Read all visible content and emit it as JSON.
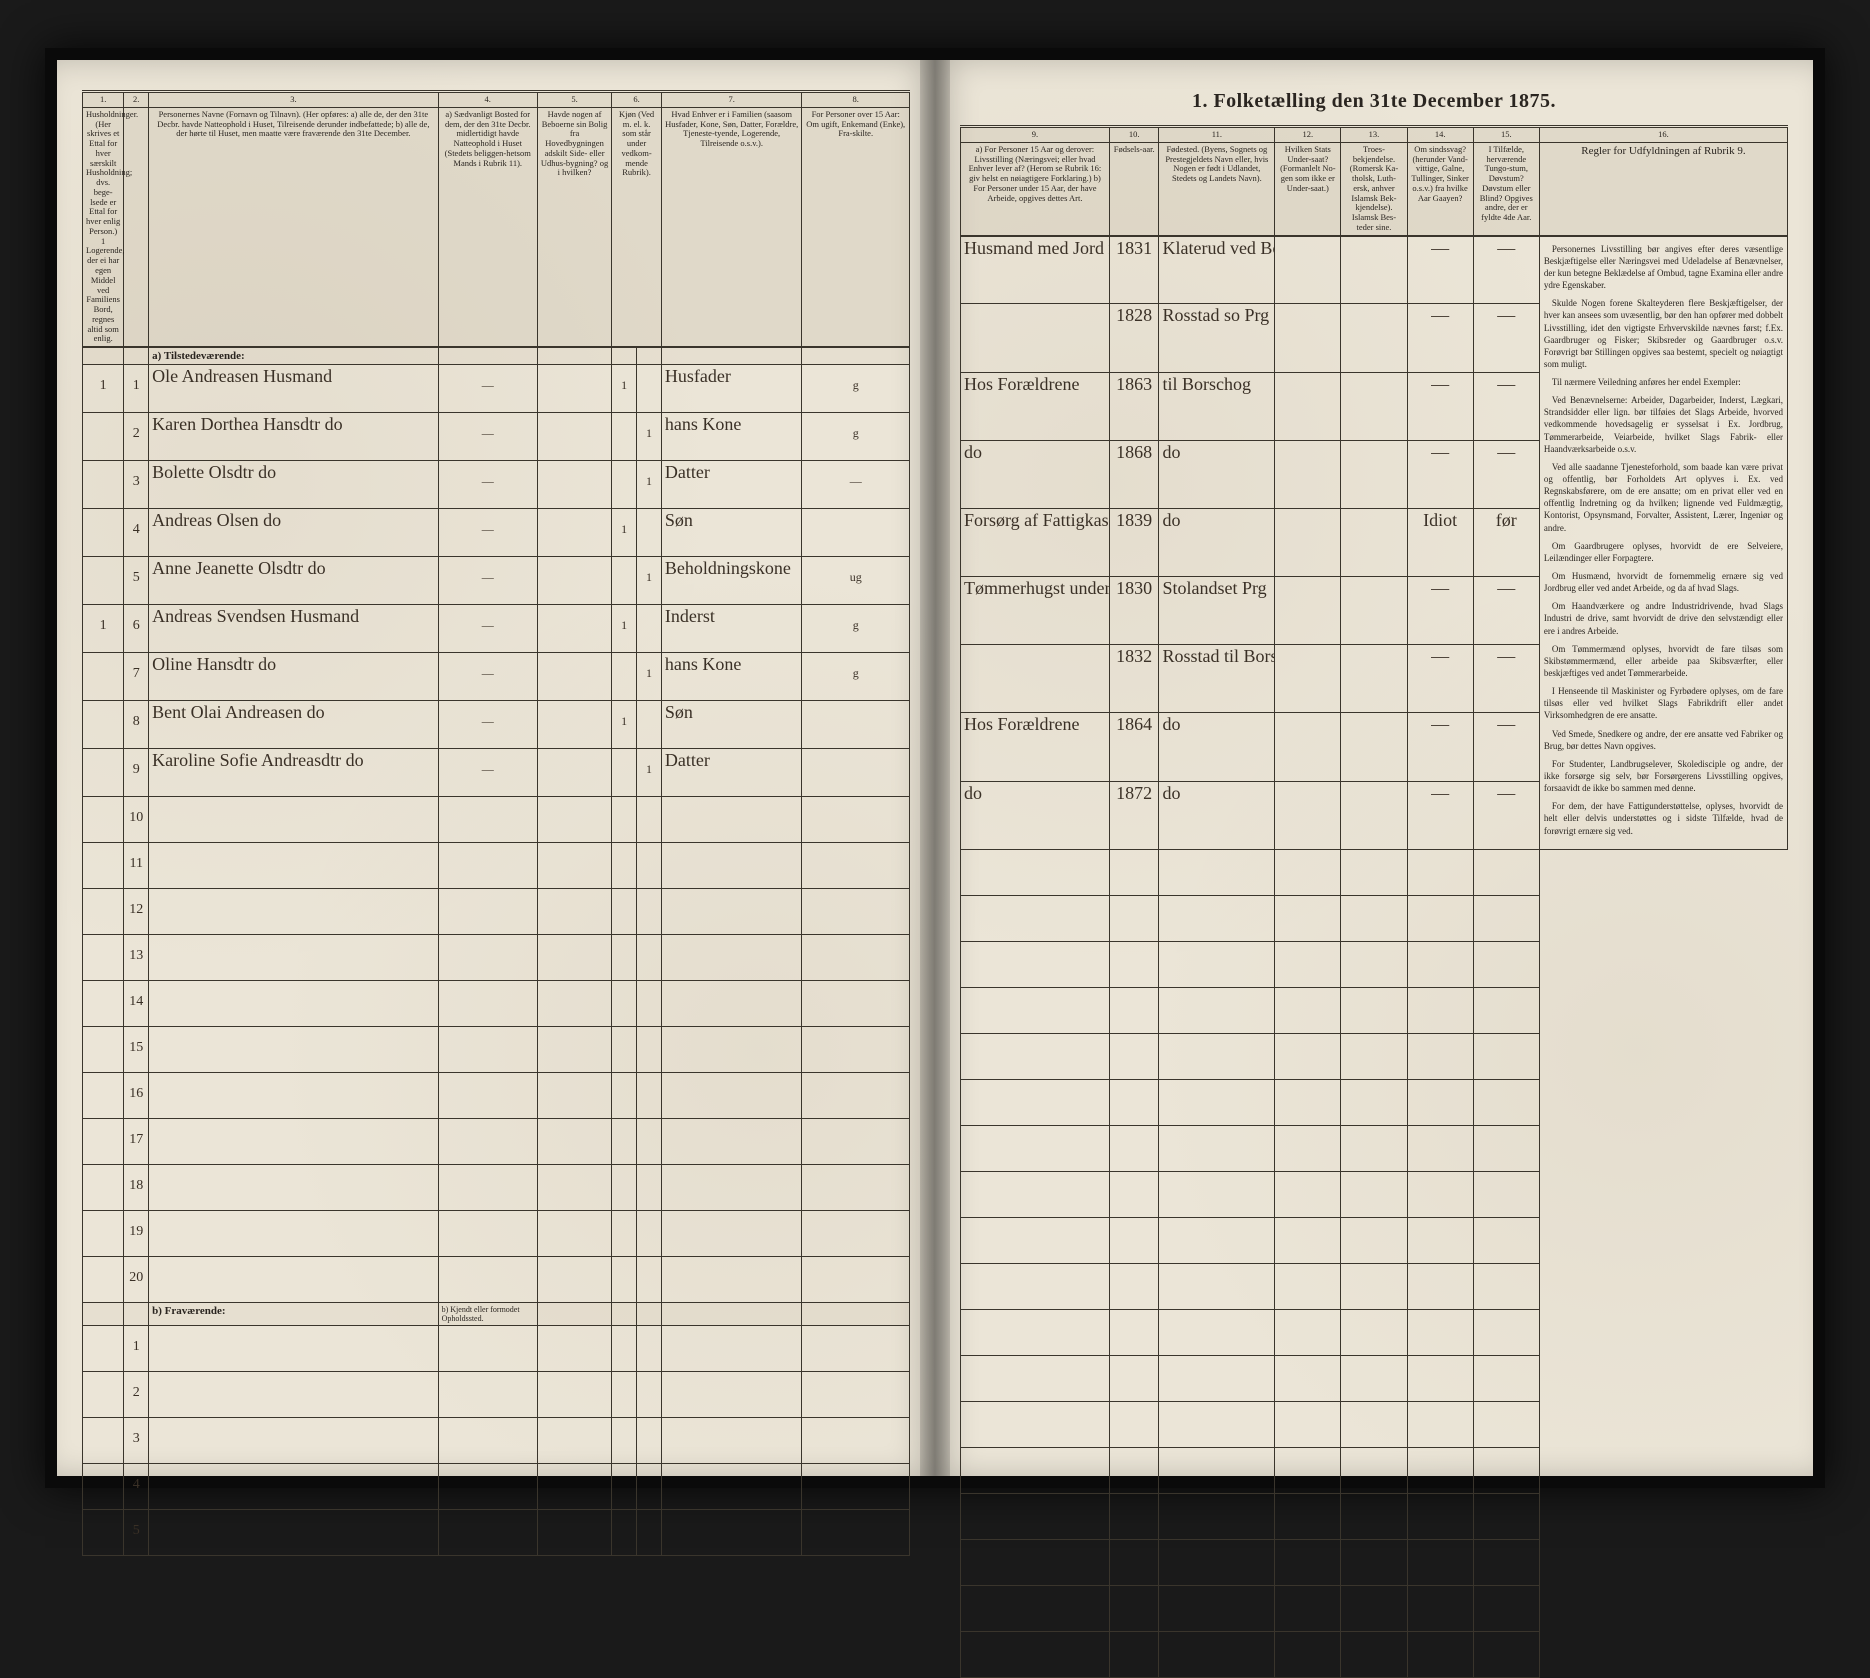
{
  "title": "1. Folketælling den 31te December 1875.",
  "left": {
    "colnums": [
      "1.",
      "2.",
      "3.",
      "4.",
      "5.",
      "6.",
      "7.",
      "8."
    ],
    "headers": [
      "Husholdninger. (Her skrives et Ettal for hver særskilt Husholdning; dvs. bege-lsede er Ettal for hver enlig Person.) 1 Logerende, der ei har egen Middel ved Familiens Bord, regnes altid som enlig.",
      "",
      "Personernes Navne (Fornavn og Tilnavn). (Her opføres:\na) alle de, der den 31te Decbr. havde Natteophold i Huset, Tilreisende derunder indbefattede;\nb) alle de, der hørte til Huset, men maatte være fraværende den 31te December.",
      "a) Sædvanligt Bosted for dem, der den 31te Decbr. midlertidigt havde Natteophold i Huset (Stedets beliggen-hetsom Mands i Rubrik 11).",
      "Havde nogen af Beboerne sin Bolig fra Hovedbygningen adskilt Side- eller Udhus-bygning? og i hvilken?",
      "Kjøn (Ved m. el. k. som står under vedkom-mende Rubrik).",
      "Hvad Enhver er i Familien (saasom Husfader, Kone, Søn, Datter, Forældre, Tjeneste-tyende, Logerende, Tilreisende o.s.v.).",
      "For Personer over 15 Aar: Om ugift, Enkemand (Enke), Fra-skilte."
    ],
    "section_a": "a) Tilstedeværende:",
    "section_b": "b) Fraværende:",
    "section_b_col4": "b) Kjendt eller formodet Opholdssted.",
    "rows": [
      {
        "h": "1",
        "n": "1",
        "name": "Ole Andreasen   Husmand",
        "c4": "—",
        "c5": "",
        "c6m": "1",
        "c6k": "",
        "c7": "Husfader",
        "c8": "g"
      },
      {
        "h": "",
        "n": "2",
        "name": "Karen Dorthea Hansdtr   do",
        "c4": "—",
        "c5": "",
        "c6m": "",
        "c6k": "1",
        "c7": "hans Kone",
        "c8": "g"
      },
      {
        "h": "",
        "n": "3",
        "name": "Bolette Olsdtr   do",
        "c4": "—",
        "c5": "",
        "c6m": "",
        "c6k": "1",
        "c7": "Datter",
        "c8": "—"
      },
      {
        "h": "",
        "n": "4",
        "name": "Andreas Olsen   do",
        "c4": "—",
        "c5": "",
        "c6m": "1",
        "c6k": "",
        "c7": "Søn",
        "c8": ""
      },
      {
        "h": "",
        "n": "5",
        "name": "Anne Jeanette Olsdtr   do",
        "c4": "—",
        "c5": "",
        "c6m": "",
        "c6k": "1",
        "c7": "Beholdningskone",
        "c8": "ug"
      },
      {
        "h": "1",
        "n": "6",
        "name": "Andreas Svendsen   Husmand",
        "c4": "—",
        "c5": "",
        "c6m": "1",
        "c6k": "",
        "c7": "Inderst",
        "c8": "g"
      },
      {
        "h": "",
        "n": "7",
        "name": "Oline Hansdtr   do",
        "c4": "—",
        "c5": "",
        "c6m": "",
        "c6k": "1",
        "c7": "hans Kone",
        "c8": "g"
      },
      {
        "h": "",
        "n": "8",
        "name": "Bent Olai Andreasen  do",
        "c4": "—",
        "c5": "",
        "c6m": "1",
        "c6k": "",
        "c7": "Søn",
        "c8": ""
      },
      {
        "h": "",
        "n": "9",
        "name": "Karoline Sofie Andreasdtr do",
        "c4": "—",
        "c5": "",
        "c6m": "",
        "c6k": "1",
        "c7": "Datter",
        "c8": ""
      }
    ],
    "empty_rows": [
      "10",
      "11",
      "12",
      "13",
      "14",
      "15",
      "16",
      "17",
      "18",
      "19",
      "20"
    ],
    "frav_rows": [
      "1",
      "2",
      "3",
      "4",
      "5"
    ]
  },
  "right": {
    "colnums": [
      "9.",
      "10.",
      "11.",
      "12.",
      "13.",
      "14.",
      "15.",
      "16."
    ],
    "headers": [
      "a) For Personer 15 Aar og derover: Livsstilling (Næringsvei; eller hvad Enhver lever af? (Herom se Rubrik 16: giv helst en nøiagtigere Forklaring.)\nb) For Personer under 15 Aar, der have Arbeide, opgives dettes Art.",
      "Fødsels-aar.",
      "Fødested. (Byens, Sognets og Prestegjeldets Navn eller, hvis Nogen er født i Udlandet, Stedets og Landets Navn).",
      "Hvilken Stats Under-saat? (Formanlelt No-gen som ikke er Under-saat.)",
      "Troes-bekjendelse. (Romersk Ka-tholsk, Luth-ersk, anhver Islamsk Bek-kjendelse). Islamsk Bes-teder sine.",
      "Om sindssvag? (herunder Vand-vittige, Galne, Tullinger, Sinker o.s.v.) fra hvilke Aar Gaayen?",
      "I Tilfælde, herværende Tungo-stum, Døvstum? Døvstum eller Blind? Opgives andre, der er fyldte 4de Aar.",
      ""
    ],
    "instr_title": "Regler for Udfyldningen af Rubrik 9.",
    "rows": [
      {
        "c9": "Husmand med Jord m.m.",
        "c10": "1831",
        "c11": "Klaterud   ved Borschog",
        "c12": "",
        "c13": "",
        "c14": "—",
        "c15": "—"
      },
      {
        "c9": "",
        "c10": "1828",
        "c11": "Rosstad   so Prg",
        "c12": "",
        "c13": "",
        "c14": "—",
        "c15": "—"
      },
      {
        "c9": "Hos Forældrene",
        "c10": "1863",
        "c11": "til Borschog",
        "c12": "",
        "c13": "",
        "c14": "—",
        "c15": "—"
      },
      {
        "c9": "do",
        "c10": "1868",
        "c11": "do",
        "c12": "",
        "c13": "",
        "c14": "—",
        "c15": "—"
      },
      {
        "c9": "Forsørg af Fattigkassen",
        "c10": "1839",
        "c11": "do",
        "c12": "",
        "c13": "",
        "c14": "Idiot",
        "c15": "før"
      },
      {
        "c9": "Tømmerhugst under Fattigkassen",
        "c10": "1830",
        "c11": "Stolandset Prg",
        "c12": "",
        "c13": "",
        "c14": "—",
        "c15": "—"
      },
      {
        "c9": "",
        "c10": "1832",
        "c11": "Rosstad   til Borschog",
        "c12": "",
        "c13": "",
        "c14": "—",
        "c15": "—"
      },
      {
        "c9": "Hos Forældrene",
        "c10": "1864",
        "c11": "do",
        "c12": "",
        "c13": "",
        "c14": "—",
        "c15": "—"
      },
      {
        "c9": "do",
        "c10": "1872",
        "c11": "do",
        "c12": "",
        "c13": "",
        "c14": "—",
        "c15": "—"
      }
    ],
    "instructions": [
      "Personernes Livsstilling bør angives efter deres væsentlige Beskjæftigelse eller Næringsvei med Udeladelse af Benævnelser, der kun betegne Beklædelse af Ombud, tagne Examina eller andre ydre Egenskaber.",
      "Skulde Nogen forene Skalteyderen flere Beskjæftigelser, der hver kan ansees som uvæsentlig, bør den han opfører med dobbelt Livsstilling, idet den vigtigste Erhvervskilde nævnes først; f.Ex. Gaardbruger og Fisker; Skibsreder og Gaardbruger o.s.v. Forøvrigt bør Stillingen opgives saa bestemt, specielt og nøiagtigt som muligt.",
      "Til nærmere Veiledning anføres her endel Exempler:",
      "Ved Benævnelserne: Arbeider, Dagarbeider, Inderst, Lægkari, Strandsidder eller lign. bør tilføies det Slags Arbeide, hvorved vedkommende hovedsagelig er sysselsat i Ex. Jordbrug, Tømmerarbeide, Veiarbeide, hvilket Slags Fabrik- eller Haandværksarbeide o.s.v.",
      "Ved alle saadanne Tjenesteforhold, som baade kan være privat og offentlig, bør Forholdets Art oplyves i. Ex. ved Regnskabsførere, om de ere ansatte; om en privat eller ved en offentlig Indretning og da hvilken; lignende ved Fuldmægtig, Kontorist, Opsynsmand, Forvalter, Assistent, Lærer, Ingeniør og andre.",
      "Om Gaardbrugere oplyses, hvorvidt de ere Selveiere, Leilændinger eller Forpagtere.",
      "Om Husmænd, hvorvidt de fornemmelig ernære sig ved Jordbrug eller ved andet Arbeide, og da af hvad Slags.",
      "Om Haandværkere og andre Industridrivende, hvad Slags Industri de drive, samt hvorvidt de drive den selvstændigt eller ere i andres Arbeide.",
      "Om Tømmermænd oplyses, hvorvidt de fare tilsøs som Skibstømmermænd, eller arbeide paa Skibsværfter, eller beskjæftiges ved andet Tømmerarbeide.",
      "I Henseende til Maskinister og Fyrbødere oplyses, om de fare tilsøs eller ved hvilket Slags Fabrikdrift eller andet Virksomhedgren de ere ansatte.",
      "Ved Smede, Snedkere og andre, der ere ansatte ved Fabriker og Brug, bør dettes Navn opgives.",
      "For Studenter, Landbrugselever, Skoledisciple og andre, der ikke forsørge sig selv, bør Forsørgerens Livsstilling opgives, forsaavidt de ikke bo sammen med denne.",
      "For dem, der have Fattigunderstøttelse, oplyses, hvorvidt de helt eller delvis understøttes og i sidste Tilfælde, hvad de forøvrigt ernære sig ved."
    ]
  }
}
